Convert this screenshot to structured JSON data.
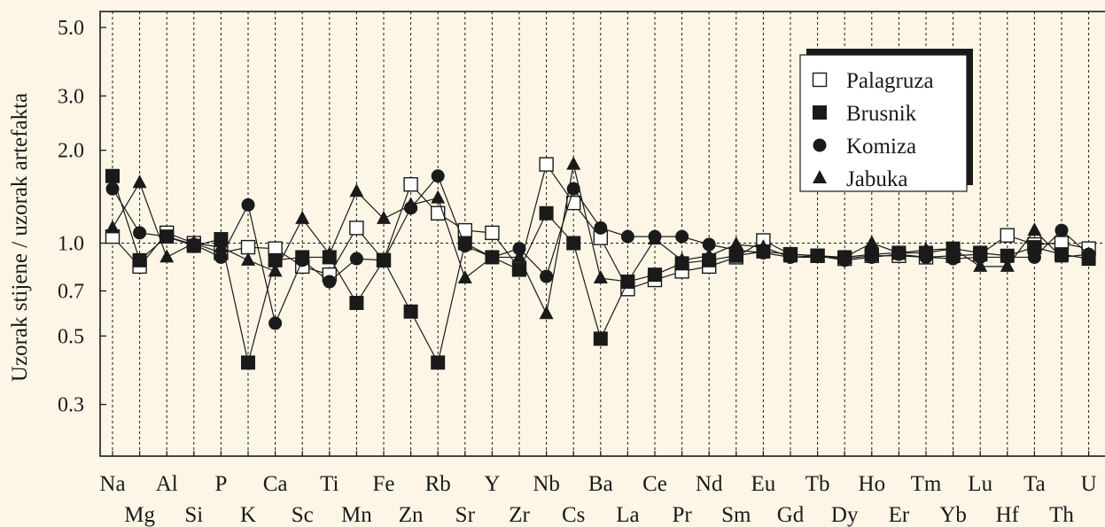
{
  "chart_data": {
    "type": "scatter",
    "ylabel": "Uzorak stijene / uzorak artefakta",
    "xlabel": "",
    "y_scale": "log",
    "ylim": [
      0.2,
      5.8
    ],
    "y_ticks": [
      "0.3",
      "0.5",
      "0.7",
      "1.0",
      "2.0",
      "3.0",
      "5.0"
    ],
    "reference_line": 1.0,
    "grid": "vertical dashed at each element",
    "legend_position": "top-right",
    "categories": [
      "Na",
      "Mg",
      "Al",
      "Si",
      "P",
      "K",
      "Ca",
      "Sc",
      "Ti",
      "Mn",
      "Fe",
      "Zn",
      "Rb",
      "Sr",
      "Y",
      "Zr",
      "Nb",
      "Cs",
      "Ba",
      "La",
      "Ce",
      "Pr",
      "Nd",
      "Sm",
      "Eu",
      "Gd",
      "Tb",
      "Dy",
      "Ho",
      "Er",
      "Tm",
      "Yb",
      "Lu",
      "Hf",
      "Ta",
      "Th",
      "U"
    ],
    "series": [
      {
        "name": "Palagruza",
        "marker": "open-square",
        "values": [
          1.05,
          0.84,
          1.08,
          1.0,
          0.93,
          0.97,
          0.96,
          0.84,
          0.79,
          1.12,
          0.88,
          1.55,
          1.25,
          1.1,
          1.08,
          0.83,
          1.8,
          1.35,
          1.04,
          0.71,
          0.76,
          0.81,
          0.84,
          0.9,
          1.02,
          0.92,
          0.91,
          0.89,
          0.91,
          0.91,
          0.9,
          0.91,
          0.92,
          1.06,
          0.99,
          1.0,
          0.96
        ]
      },
      {
        "name": "Brusnik",
        "marker": "filled-square",
        "values": [
          1.65,
          0.88,
          1.05,
          0.98,
          1.03,
          0.41,
          0.88,
          0.9,
          0.9,
          0.64,
          0.88,
          0.6,
          0.41,
          1.0,
          0.9,
          0.82,
          1.25,
          1.0,
          0.49,
          0.75,
          0.79,
          0.86,
          0.88,
          0.91,
          0.94,
          0.92,
          0.91,
          0.9,
          0.92,
          0.93,
          0.93,
          0.96,
          0.93,
          0.91,
          0.97,
          0.92,
          0.89
        ]
      },
      {
        "name": "Komiza",
        "marker": "filled-circle",
        "values": [
          1.5,
          1.08,
          1.05,
          0.99,
          0.9,
          1.33,
          0.55,
          0.88,
          0.75,
          0.89,
          0.88,
          1.3,
          1.65,
          0.98,
          0.9,
          0.96,
          0.78,
          1.5,
          1.12,
          1.05,
          1.05,
          1.05,
          0.99,
          0.95,
          0.93,
          0.9,
          0.91,
          0.88,
          0.9,
          0.92,
          0.9,
          0.89,
          0.9,
          0.9,
          0.9,
          1.1,
          0.92
        ]
      },
      {
        "name": "Jabuka",
        "marker": "filled-triangle",
        "values": [
          1.12,
          1.57,
          0.9,
          1.0,
          0.97,
          0.88,
          0.81,
          1.2,
          0.92,
          1.47,
          1.2,
          1.33,
          1.4,
          0.77,
          0.9,
          0.9,
          0.59,
          1.8,
          0.77,
          0.75,
          1.03,
          0.88,
          0.91,
          0.99,
          0.97,
          0.9,
          0.9,
          0.9,
          1.0,
          0.93,
          0.95,
          0.96,
          0.84,
          0.84,
          1.1,
          0.9,
          0.92
        ]
      }
    ]
  },
  "colors": {
    "background": "#fdf6e6",
    "ink": "#1a1a1a",
    "marker_fill_open": "#ffffff"
  }
}
